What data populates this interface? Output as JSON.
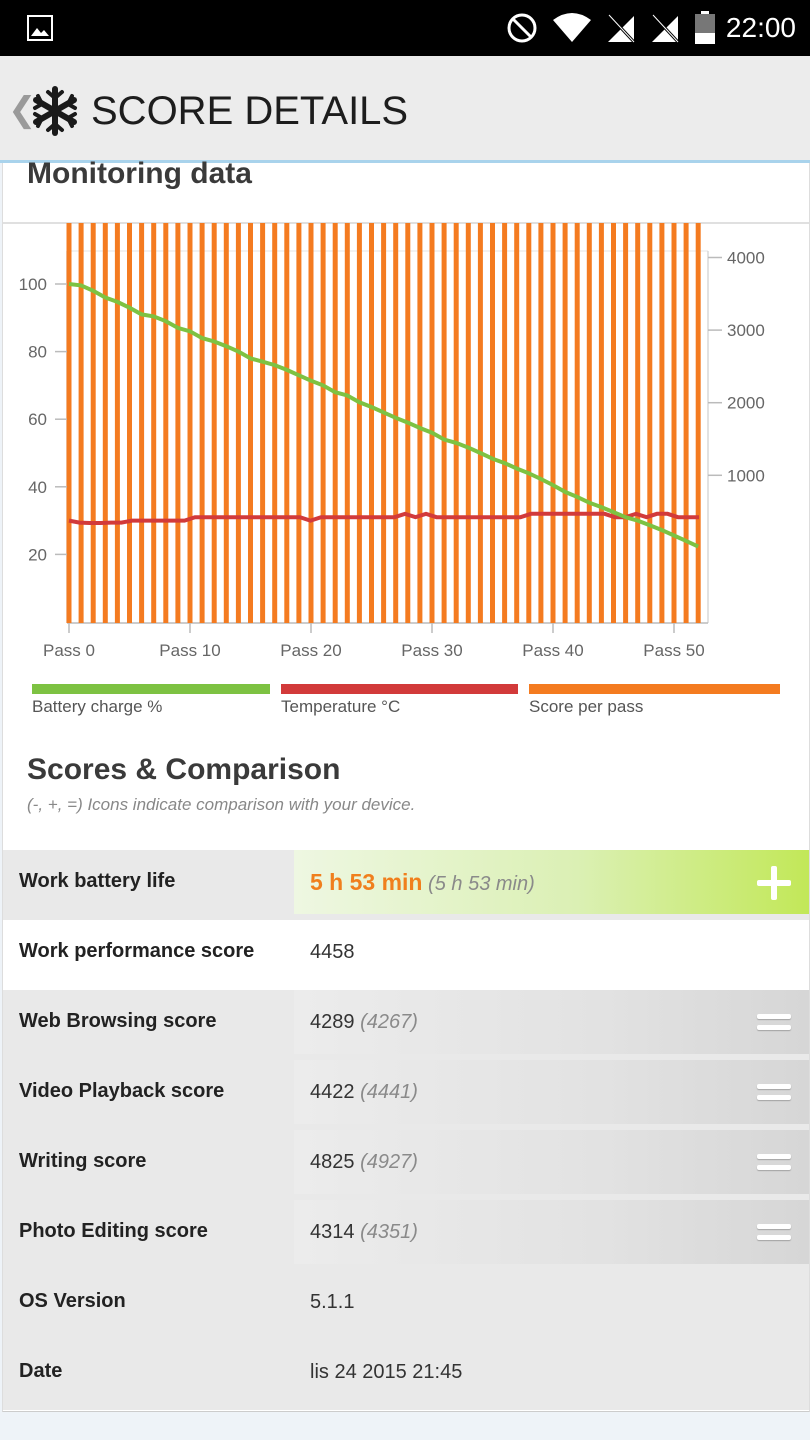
{
  "status_bar": {
    "time": "22:00"
  },
  "app_bar": {
    "back": "❮",
    "title": "SCORE DETAILS"
  },
  "monitoring": {
    "title": "Monitoring data",
    "legend": [
      {
        "label": "Battery charge %",
        "color": "#7dc242"
      },
      {
        "label": "Temperature °C",
        "color": "#d23a3a"
      },
      {
        "label": "Score per pass",
        "color": "#f47b20"
      }
    ]
  },
  "chart_data": {
    "type": "bar",
    "xlabel_ticks": [
      "Pass 0",
      "Pass 10",
      "Pass 20",
      "Pass 30",
      "Pass 40",
      "Pass 50"
    ],
    "left_axis": {
      "ticks": [
        100,
        80,
        60,
        40,
        20
      ],
      "range": [
        0,
        110
      ]
    },
    "right_axis": {
      "ticks": [
        4000,
        3000,
        2000,
        1000
      ],
      "range": [
        -1000,
        4000
      ]
    },
    "series": [
      {
        "name": "Score per pass",
        "axis": "right",
        "type": "bar",
        "values": [
          4540,
          4680,
          4600,
          4720,
          4780,
          4880,
          4690,
          4780,
          4850,
          4790,
          4700,
          4810,
          4650,
          4700,
          4820,
          4760,
          4710,
          4750,
          4790,
          4560,
          4750,
          4810,
          4670,
          4680,
          4750,
          4600,
          4810,
          4620,
          4830,
          4610,
          4750,
          4790,
          4790,
          4710,
          4760,
          4760,
          4740,
          4730,
          4840,
          4720,
          4660,
          4680,
          4760,
          4740,
          4690,
          4650,
          4670,
          4700,
          4710,
          4700,
          4720,
          4680,
          4570
        ]
      },
      {
        "name": "Battery charge %",
        "axis": "left",
        "type": "line",
        "values": [
          100,
          99.6,
          98,
          96,
          94.7,
          93,
          91,
          90.4,
          89,
          87,
          86,
          84,
          83,
          81.6,
          80,
          78,
          77,
          76,
          74.6,
          73,
          71.4,
          70,
          68,
          67,
          65,
          63.6,
          62,
          60.4,
          59,
          57.4,
          56,
          54,
          53,
          51.6,
          50,
          48.3,
          47,
          45.4,
          44,
          42.3,
          40.5,
          38.5,
          37,
          35.3,
          34,
          32.5,
          31,
          30,
          28.6,
          27.2,
          25.6,
          24,
          22.3
        ]
      },
      {
        "name": "Temperature °C",
        "axis": "left",
        "type": "line",
        "values": [
          30,
          29.4,
          29.3,
          29.3,
          29.4,
          29.4,
          30,
          30,
          30,
          30,
          30,
          30,
          31,
          31,
          31,
          31,
          31,
          31,
          31,
          31,
          31,
          31,
          31,
          30,
          31,
          31,
          31,
          31,
          31,
          31,
          31,
          31,
          32,
          31,
          32,
          31,
          31,
          31,
          31,
          31,
          31,
          31,
          31,
          31,
          32,
          32,
          32,
          32,
          32,
          32,
          32,
          32,
          31,
          31,
          32,
          31,
          32,
          32,
          31,
          31,
          31
        ]
      }
    ]
  },
  "scores": {
    "title": "Scores & Comparison",
    "subtitle": "(-, +, =) Icons indicate comparison with your device.",
    "rows": [
      {
        "label": "Work battery life",
        "value": "5 h 53 min",
        "ref": "(5 h 53 min)",
        "icon": "plus-icon",
        "highlight_color": "#c2e858"
      },
      {
        "label": "Work performance score",
        "value": "4458",
        "ref": "",
        "icon": ""
      },
      {
        "label": "Web Browsing score",
        "value": "4289",
        "ref": "(4267)",
        "icon": "equals-icon"
      },
      {
        "label": "Video Playback score",
        "value": "4422",
        "ref": "(4441)",
        "icon": "equals-icon"
      },
      {
        "label": "Writing score",
        "value": "4825",
        "ref": "(4927)",
        "icon": "equals-icon"
      },
      {
        "label": "Photo Editing score",
        "value": "4314",
        "ref": "(4351)",
        "icon": "equals-icon"
      },
      {
        "label": "OS Version",
        "value": "5.1.1",
        "ref": "",
        "icon": ""
      },
      {
        "label": "Date",
        "value": "lis 24 2015 21:45",
        "ref": "",
        "icon": ""
      }
    ]
  }
}
